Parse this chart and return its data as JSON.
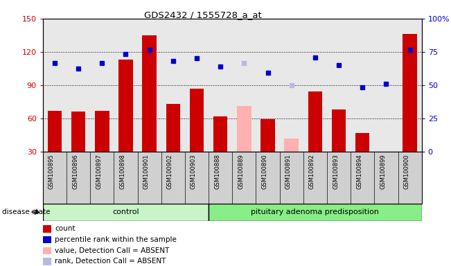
{
  "title": "GDS2432 / 1555728_a_at",
  "categories": [
    "GSM100895",
    "GSM100896",
    "GSM100897",
    "GSM100898",
    "GSM100901",
    "GSM100902",
    "GSM100903",
    "GSM100888",
    "GSM100889",
    "GSM100890",
    "GSM100891",
    "GSM100892",
    "GSM100893",
    "GSM100894",
    "GSM100899",
    "GSM100900"
  ],
  "bar_values": [
    67,
    66,
    67,
    113,
    135,
    73,
    87,
    62,
    71,
    59,
    42,
    84,
    68,
    47,
    29,
    136
  ],
  "bar_colors": [
    "#cc0000",
    "#cc0000",
    "#cc0000",
    "#cc0000",
    "#cc0000",
    "#cc0000",
    "#cc0000",
    "#cc0000",
    "#ffb0b0",
    "#cc0000",
    "#ffb0b0",
    "#cc0000",
    "#cc0000",
    "#cc0000",
    "#cc0000",
    "#cc0000"
  ],
  "rank_values": [
    110,
    105,
    110,
    118,
    122,
    112,
    114,
    107,
    110,
    101,
    90,
    115,
    108,
    88,
    91,
    122
  ],
  "rank_colors": [
    "#0000cc",
    "#0000cc",
    "#0000cc",
    "#0000cc",
    "#0000cc",
    "#0000cc",
    "#0000cc",
    "#0000cc",
    "#b8b8e8",
    "#0000cc",
    "#b8b8e8",
    "#0000cc",
    "#0000cc",
    "#0000cc",
    "#0000cc",
    "#0000cc"
  ],
  "control_count": 7,
  "ylim_left": [
    30,
    150
  ],
  "ylim_right": [
    0,
    100
  ],
  "yticks_left": [
    30,
    60,
    90,
    120,
    150
  ],
  "yticks_right": [
    0,
    25,
    50,
    75,
    100
  ],
  "group_labels": [
    "control",
    "pituitary adenoma predisposition"
  ],
  "group_color_control": "#c8f5c8",
  "group_color_pap": "#88ee88",
  "disease_state_label": "disease state",
  "legend_items": [
    {
      "label": "count",
      "color": "#cc0000"
    },
    {
      "label": "percentile rank within the sample",
      "color": "#0000cc"
    },
    {
      "label": "value, Detection Call = ABSENT",
      "color": "#ffb0b0"
    },
    {
      "label": "rank, Detection Call = ABSENT",
      "color": "#b8b8e8"
    }
  ],
  "background_color": "#e8e8e8",
  "xtick_bg": "#d0d0d0"
}
